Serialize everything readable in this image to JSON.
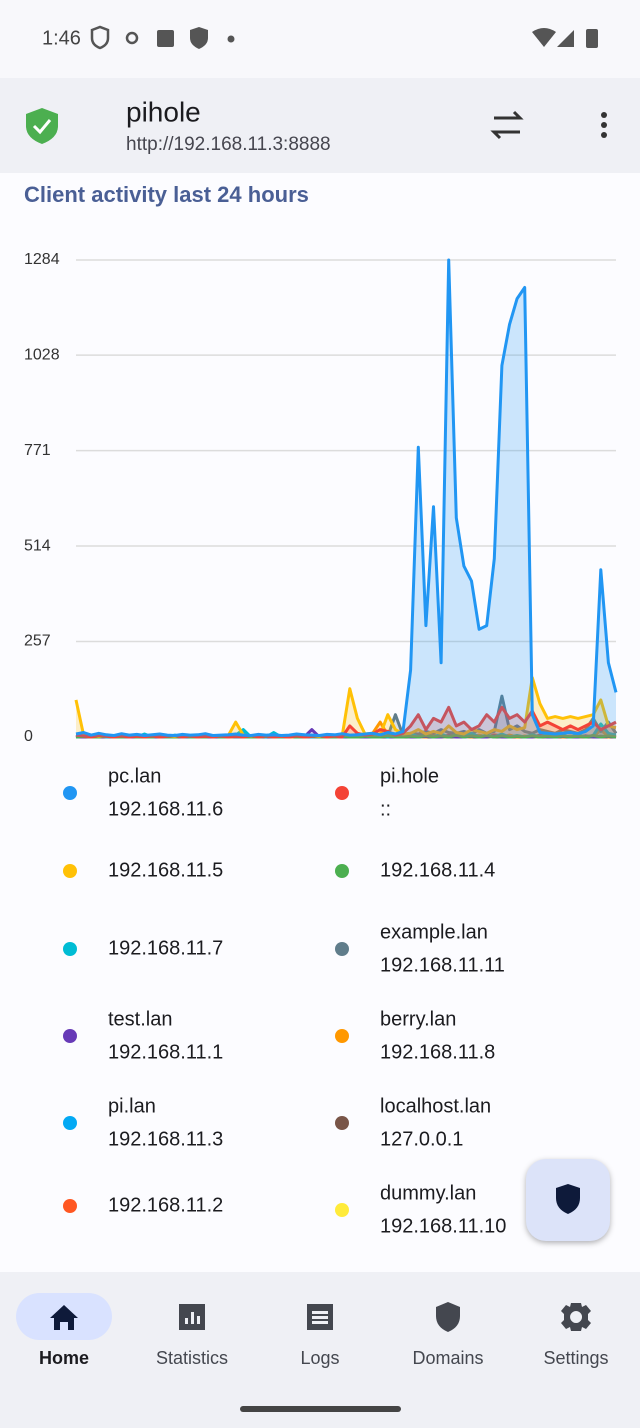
{
  "status_bar": {
    "time": "1:46"
  },
  "app_bar": {
    "title": "pihole",
    "subtitle": "http://192.168.11.3:8888"
  },
  "chart_data": {
    "type": "line",
    "title": "Client activity last 24 hours",
    "ylim": [
      0,
      1284
    ],
    "yticks": [
      0,
      257,
      514,
      771,
      1028,
      1284
    ],
    "grid": true,
    "area": true,
    "series": [
      {
        "name": "pc.lan",
        "address": "192.168.11.6",
        "color": "#2196f3",
        "values": [
          8,
          12,
          5,
          10,
          6,
          4,
          9,
          5,
          7,
          4,
          6,
          8,
          5,
          4,
          7,
          5,
          6,
          9,
          4,
          5,
          6,
          8,
          5,
          4,
          7,
          5,
          6,
          4,
          5,
          8,
          6,
          5,
          4,
          7,
          6,
          9,
          5,
          6,
          8,
          10,
          6,
          12,
          8,
          15,
          180,
          780,
          300,
          620,
          200,
          1284,
          590,
          460,
          420,
          290,
          300,
          480,
          1000,
          1110,
          1180,
          1210,
          60,
          12,
          10,
          8,
          10,
          12,
          9,
          15,
          30,
          450,
          200,
          120
        ]
      },
      {
        "name": "pi.hole",
        "address": "::",
        "color": "#f44336",
        "values": [
          5,
          3,
          0,
          4,
          2,
          0,
          3,
          0,
          2,
          0,
          3,
          0,
          2,
          4,
          0,
          3,
          0,
          2,
          0,
          3,
          0,
          2,
          0,
          4,
          0,
          3,
          0,
          2,
          0,
          3,
          0,
          2,
          4,
          0,
          3,
          0,
          30,
          10,
          5,
          8,
          20,
          15,
          5,
          10,
          30,
          60,
          20,
          50,
          40,
          80,
          30,
          40,
          20,
          30,
          60,
          40,
          80,
          50,
          60,
          40,
          70,
          30,
          40,
          30,
          20,
          30,
          20,
          30,
          40,
          20,
          30,
          40
        ]
      },
      {
        "address": "192.168.11.5",
        "color": "#ffc107",
        "values": [
          100,
          5,
          3,
          2,
          4,
          2,
          3,
          5,
          2,
          3,
          4,
          2,
          3,
          2,
          4,
          3,
          2,
          3,
          2,
          4,
          3,
          40,
          5,
          3,
          2,
          4,
          3,
          2,
          3,
          4,
          2,
          3,
          2,
          5,
          4,
          3,
          130,
          50,
          8,
          10,
          6,
          60,
          20,
          8,
          10,
          20,
          8,
          15,
          10,
          30,
          12,
          8,
          20,
          15,
          10,
          20,
          15,
          30,
          20,
          25,
          160,
          90,
          50,
          55,
          50,
          55,
          50,
          55,
          60,
          100,
          30,
          25
        ]
      },
      {
        "address": "192.168.11.4",
        "color": "#4caf50",
        "values": [
          0,
          2,
          0,
          0,
          3,
          0,
          0,
          2,
          0,
          0,
          0,
          3,
          0,
          0,
          2,
          0,
          0,
          0,
          2,
          0,
          0,
          3,
          0,
          0,
          0,
          2,
          0,
          0,
          3,
          0,
          0,
          2,
          0,
          0,
          0,
          3,
          0,
          0,
          2,
          0,
          0,
          3,
          0,
          0,
          2,
          0,
          4,
          0,
          3,
          0,
          5,
          0,
          3,
          0,
          4,
          0,
          3,
          0,
          2,
          0,
          3,
          0,
          2,
          0,
          3,
          0,
          2,
          0,
          4,
          0,
          3,
          0
        ]
      },
      {
        "address": "192.168.11.7",
        "color": "#00bcd4",
        "values": [
          0,
          3,
          0,
          5,
          0,
          2,
          0,
          4,
          0,
          8,
          0,
          3,
          0,
          5,
          0,
          2,
          0,
          6,
          0,
          3,
          0,
          5,
          20,
          0,
          4,
          0,
          12,
          0,
          3,
          0,
          6,
          0,
          2,
          0,
          4,
          0,
          3,
          0,
          8,
          0,
          5,
          0,
          6,
          0,
          10,
          0,
          5,
          0,
          8,
          0,
          6,
          0,
          10,
          0,
          5,
          0,
          8,
          0,
          4,
          0,
          6,
          0,
          5,
          0,
          3,
          0,
          6,
          0,
          4,
          35,
          10,
          5
        ]
      },
      {
        "name": "example.lan",
        "address": "192.168.11.11",
        "color": "#607d8b",
        "values": [
          0,
          2,
          0,
          3,
          0,
          2,
          0,
          0,
          3,
          0,
          2,
          0,
          0,
          3,
          0,
          2,
          0,
          0,
          3,
          0,
          2,
          0,
          0,
          3,
          0,
          2,
          0,
          0,
          3,
          0,
          2,
          0,
          0,
          3,
          0,
          2,
          0,
          0,
          3,
          0,
          0,
          2,
          60,
          5,
          10,
          8,
          15,
          10,
          20,
          12,
          10,
          15,
          8,
          20,
          10,
          15,
          110,
          20,
          30,
          15,
          10,
          20,
          15,
          10,
          20,
          15,
          10,
          20,
          50,
          15,
          40,
          10
        ]
      },
      {
        "name": "test.lan",
        "address": "192.168.11.1",
        "color": "#673ab7",
        "values": [
          0,
          0,
          2,
          0,
          0,
          3,
          0,
          0,
          0,
          2,
          0,
          0,
          0,
          3,
          0,
          0,
          2,
          0,
          0,
          0,
          3,
          0,
          0,
          0,
          2,
          0,
          0,
          0,
          3,
          0,
          0,
          20,
          0,
          0,
          2,
          0,
          0,
          3,
          0,
          0,
          2,
          0,
          0,
          3,
          0,
          0,
          2,
          0,
          0,
          3,
          0,
          0,
          2,
          0,
          0,
          3,
          0,
          0,
          2,
          0,
          0,
          3,
          0,
          0,
          2,
          0,
          0,
          3,
          0,
          0,
          2,
          0
        ]
      },
      {
        "name": "berry.lan",
        "address": "192.168.11.8",
        "color": "#ff9800",
        "values": [
          0,
          2,
          0,
          0,
          3,
          0,
          2,
          0,
          0,
          3,
          0,
          0,
          2,
          0,
          3,
          0,
          0,
          2,
          0,
          3,
          0,
          0,
          2,
          0,
          0,
          3,
          0,
          2,
          0,
          0,
          3,
          0,
          0,
          2,
          0,
          0,
          3,
          0,
          5,
          10,
          40,
          5,
          0,
          3,
          0,
          2,
          0,
          5,
          0,
          3,
          0,
          2,
          0,
          5,
          0,
          3,
          0,
          5,
          0,
          2,
          0,
          3,
          0,
          5,
          0,
          2,
          0,
          3,
          0,
          20,
          0,
          5
        ]
      },
      {
        "name": "pi.lan",
        "address": "192.168.11.3",
        "color": "#03a9f4",
        "values": [
          0,
          3,
          0,
          0,
          2,
          0,
          0,
          3,
          0,
          0,
          2,
          0,
          0,
          3,
          0,
          0,
          2,
          0,
          0,
          3,
          0,
          0,
          15,
          0,
          0,
          2,
          0,
          0,
          3,
          0,
          0,
          2,
          0,
          0,
          3,
          0,
          0,
          2,
          0,
          0,
          3,
          0,
          0,
          2,
          0,
          0,
          3,
          0,
          0,
          2,
          0,
          0,
          3,
          0,
          0,
          2,
          0,
          0,
          3,
          0,
          0,
          2,
          0,
          0,
          3,
          0,
          0,
          2,
          0,
          0,
          3,
          0
        ]
      },
      {
        "name": "localhost.lan",
        "address": "127.0.0.1",
        "color": "#795548",
        "values": [
          2,
          0,
          0,
          2,
          0,
          0,
          2,
          0,
          0,
          2,
          0,
          0,
          2,
          0,
          0,
          2,
          0,
          0,
          2,
          0,
          0,
          2,
          0,
          0,
          2,
          0,
          0,
          2,
          0,
          0,
          2,
          0,
          0,
          2,
          0,
          0,
          2,
          0,
          0,
          2,
          0,
          0,
          2,
          0,
          0,
          2,
          0,
          0,
          2,
          0,
          0,
          2,
          0,
          0,
          2,
          0,
          0,
          2,
          0,
          0,
          2,
          0,
          0,
          2,
          0,
          0,
          2,
          0,
          0,
          2,
          0,
          0
        ]
      },
      {
        "address": "192.168.11.2",
        "color": "#ff5722",
        "values": [
          0,
          0,
          3,
          0,
          0,
          2,
          0,
          0,
          3,
          0,
          0,
          2,
          0,
          0,
          3,
          0,
          0,
          2,
          0,
          0,
          3,
          0,
          0,
          2,
          0,
          0,
          3,
          0,
          0,
          2,
          0,
          0,
          3,
          0,
          0,
          2,
          0,
          0,
          3,
          0,
          0,
          2,
          0,
          0,
          3,
          0,
          10,
          2,
          0,
          5,
          3,
          0,
          8,
          2,
          0,
          6,
          3,
          0,
          0,
          2,
          0,
          5,
          3,
          0,
          0,
          2,
          0,
          0,
          3,
          0,
          0,
          2
        ]
      },
      {
        "name": "dummy.lan",
        "address": "192.168.11.10",
        "color": "#ffeb3b",
        "values": [
          0,
          0,
          0,
          2,
          0,
          0,
          0,
          2,
          0,
          0,
          0,
          2,
          0,
          0,
          0,
          2,
          0,
          0,
          0,
          2,
          0,
          0,
          0,
          2,
          0,
          0,
          0,
          2,
          0,
          0,
          0,
          2,
          0,
          0,
          0,
          2,
          0,
          0,
          0,
          2,
          0,
          0,
          0,
          2,
          0,
          0,
          0,
          2,
          0,
          0,
          0,
          2,
          0,
          0,
          0,
          2,
          0,
          0,
          0,
          2,
          0,
          0,
          0,
          2,
          0,
          0,
          0,
          2,
          0,
          0,
          0,
          2
        ]
      }
    ]
  },
  "bottom_nav": {
    "items": [
      "Home",
      "Statistics",
      "Logs",
      "Domains",
      "Settings"
    ],
    "selected": 0
  }
}
